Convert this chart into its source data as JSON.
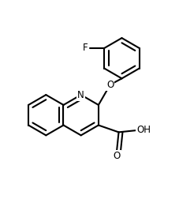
{
  "bg_color": "#ffffff",
  "line_color": "#000000",
  "line_width": 1.5,
  "font_size": 8.5,
  "figsize": [
    2.28,
    2.52
  ],
  "dpi": 100,
  "xlim": [
    -0.5,
    3.8
  ],
  "ylim": [
    -1.8,
    3.2
  ]
}
